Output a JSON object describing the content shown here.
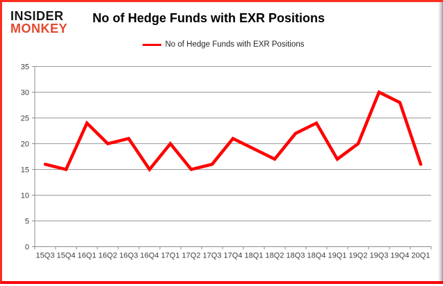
{
  "brand": {
    "line1": "INSIDER",
    "line2": "MONKEY"
  },
  "title": "No of Hedge Funds with EXR Positions",
  "legend": {
    "label": "No of Hedge Funds with EXR Positions"
  },
  "colors": {
    "line": "#ff0000",
    "grid": "#9a9a9a",
    "axis": "#8c8c8c",
    "axis_text": "#3f3f3f",
    "frame_red": "#fa2d1f",
    "brand_black": "#161616",
    "brand_red": "#e2492f"
  },
  "chart_data": {
    "type": "line",
    "title": "No of Hedge Funds with EXR Positions",
    "categories": [
      "15Q3",
      "15Q4",
      "16Q1",
      "16Q2",
      "16Q3",
      "16Q4",
      "17Q1",
      "17Q2",
      "17Q3",
      "17Q4",
      "18Q1",
      "18Q2",
      "18Q3",
      "18Q4",
      "19Q1",
      "19Q2",
      "19Q3",
      "19Q4",
      "20Q1"
    ],
    "series": [
      {
        "name": "No of Hedge Funds with EXR Positions",
        "values": [
          16,
          15,
          24,
          20,
          21,
          15,
          20,
          15,
          16,
          21,
          19,
          17,
          22,
          24,
          17,
          20,
          30,
          28,
          16
        ]
      }
    ],
    "xlabel": "",
    "ylabel": "",
    "ylim": [
      0,
      35
    ],
    "yticks": [
      0,
      5,
      10,
      15,
      20,
      25,
      30,
      35
    ],
    "grid": true,
    "legend_position": "top"
  }
}
